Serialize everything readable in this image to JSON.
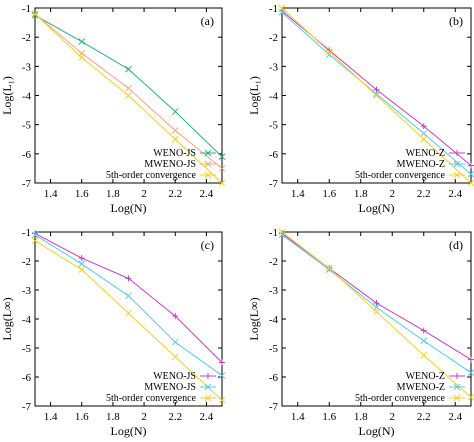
{
  "chart_data": [
    {
      "type": "line",
      "panel_label": "(a)",
      "xlabel": "Log(N)",
      "ylabel": "Log(L₁)",
      "xlim": [
        1.3,
        2.5
      ],
      "ylim": [
        -7,
        -1
      ],
      "xticks": [
        "1.4",
        "1.6",
        "1.8",
        "2",
        "2.2",
        "2.4"
      ],
      "yticks": [
        "-1",
        "-2",
        "-3",
        "-4",
        "-5",
        "-6",
        "-7"
      ],
      "legend_position": "bottom-right",
      "series": [
        {
          "name": "WENO-JS",
          "color": "#2ab07f",
          "marker": "x",
          "x": [
            1.3,
            1.6,
            1.9,
            2.2,
            2.5
          ],
          "y": [
            -1.25,
            -2.15,
            -3.1,
            -4.55,
            -6.1
          ]
        },
        {
          "name": "MWENO-JS",
          "color": "#f4a582",
          "marker": "x",
          "x": [
            1.3,
            1.6,
            1.9,
            2.2,
            2.5
          ],
          "y": [
            -1.2,
            -2.55,
            -3.75,
            -5.2,
            -6.5
          ]
        },
        {
          "name": "5th-order convergence",
          "color": "#f2d024",
          "marker": "x",
          "x": [
            1.3,
            1.6,
            1.9,
            2.2,
            2.5
          ],
          "y": [
            -1.2,
            -2.7,
            -4.0,
            -5.5,
            -7.0
          ]
        }
      ]
    },
    {
      "type": "line",
      "panel_label": "(b)",
      "xlabel": "Log(N)",
      "ylabel": "Log(L₁)",
      "xlim": [
        1.3,
        2.5
      ],
      "ylim": [
        -7,
        -1
      ],
      "xticks": [
        "1.4",
        "1.6",
        "1.8",
        "2",
        "2.2",
        "2.4"
      ],
      "yticks": [
        "-1",
        "-2",
        "-3",
        "-4",
        "-5",
        "-6",
        "-7"
      ],
      "legend_position": "bottom-right",
      "series": [
        {
          "name": "WENO-Z",
          "color": "#c040c0",
          "marker": "+",
          "x": [
            1.3,
            1.6,
            1.9,
            2.2,
            2.5
          ],
          "y": [
            -1.1,
            -2.45,
            -3.8,
            -5.05,
            -6.4
          ]
        },
        {
          "name": "MWENO-Z",
          "color": "#5bc8e8",
          "marker": "x",
          "x": [
            1.3,
            1.6,
            1.9,
            2.2,
            2.5
          ],
          "y": [
            -1.15,
            -2.6,
            -3.95,
            -5.3,
            -6.7
          ]
        },
        {
          "name": "5th-order convergence",
          "color": "#f2d024",
          "marker": "x",
          "x": [
            1.3,
            1.6,
            1.9,
            2.2,
            2.5
          ],
          "y": [
            -1.0,
            -2.5,
            -4.0,
            -5.5,
            -7.0
          ]
        }
      ]
    },
    {
      "type": "line",
      "panel_label": "(c)",
      "xlabel": "Log(N)",
      "ylabel": "Log(L∞)",
      "xlim": [
        1.3,
        2.5
      ],
      "ylim": [
        -7,
        -1
      ],
      "xticks": [
        "1.4",
        "1.6",
        "1.8",
        "2",
        "2.2",
        "2.4"
      ],
      "yticks": [
        "-1",
        "-2",
        "-3",
        "-4",
        "-5",
        "-6",
        "-7"
      ],
      "legend_position": "bottom-right",
      "series": [
        {
          "name": "WENO-JS",
          "color": "#c040c0",
          "marker": "+",
          "x": [
            1.3,
            1.6,
            1.9,
            2.2,
            2.5
          ],
          "y": [
            -1.05,
            -1.9,
            -2.6,
            -3.9,
            -5.5
          ]
        },
        {
          "name": "MWENO-JS",
          "color": "#5bc8e8",
          "marker": "x",
          "x": [
            1.3,
            1.6,
            1.9,
            2.2,
            2.5
          ],
          "y": [
            -1.1,
            -2.1,
            -3.2,
            -4.8,
            -5.95
          ]
        },
        {
          "name": "5th-order convergence",
          "color": "#f2d024",
          "marker": "x",
          "x": [
            1.3,
            1.6,
            1.9,
            2.2,
            2.5
          ],
          "y": [
            -1.3,
            -2.3,
            -3.8,
            -5.3,
            -6.8
          ]
        }
      ]
    },
    {
      "type": "line",
      "panel_label": "(d)",
      "xlabel": "Log(N)",
      "ylabel": "Log(L∞)",
      "xlim": [
        1.3,
        2.5
      ],
      "ylim": [
        -7,
        -1
      ],
      "xticks": [
        "1.4",
        "1.6",
        "1.8",
        "2",
        "2.2",
        "2.4"
      ],
      "yticks": [
        "-1",
        "-2",
        "-3",
        "-4",
        "-5",
        "-6",
        "-7"
      ],
      "legend_position": "bottom-right",
      "series": [
        {
          "name": "WENO-Z",
          "color": "#c040c0",
          "marker": "+",
          "x": [
            1.3,
            1.6,
            1.9,
            2.2,
            2.5
          ],
          "y": [
            -1.05,
            -2.25,
            -3.45,
            -4.4,
            -5.4
          ]
        },
        {
          "name": "MWENO-Z",
          "color": "#5bc8e8",
          "marker": "x",
          "x": [
            1.3,
            1.6,
            1.9,
            2.2,
            2.5
          ],
          "y": [
            -1.1,
            -2.3,
            -3.6,
            -4.75,
            -5.85
          ]
        },
        {
          "name": "5th-order convergence",
          "color": "#f2d024",
          "marker": "x",
          "x": [
            1.3,
            1.6,
            1.9,
            2.2,
            2.5
          ],
          "y": [
            -1.0,
            -2.25,
            -3.75,
            -5.25,
            -6.7
          ]
        }
      ]
    }
  ]
}
